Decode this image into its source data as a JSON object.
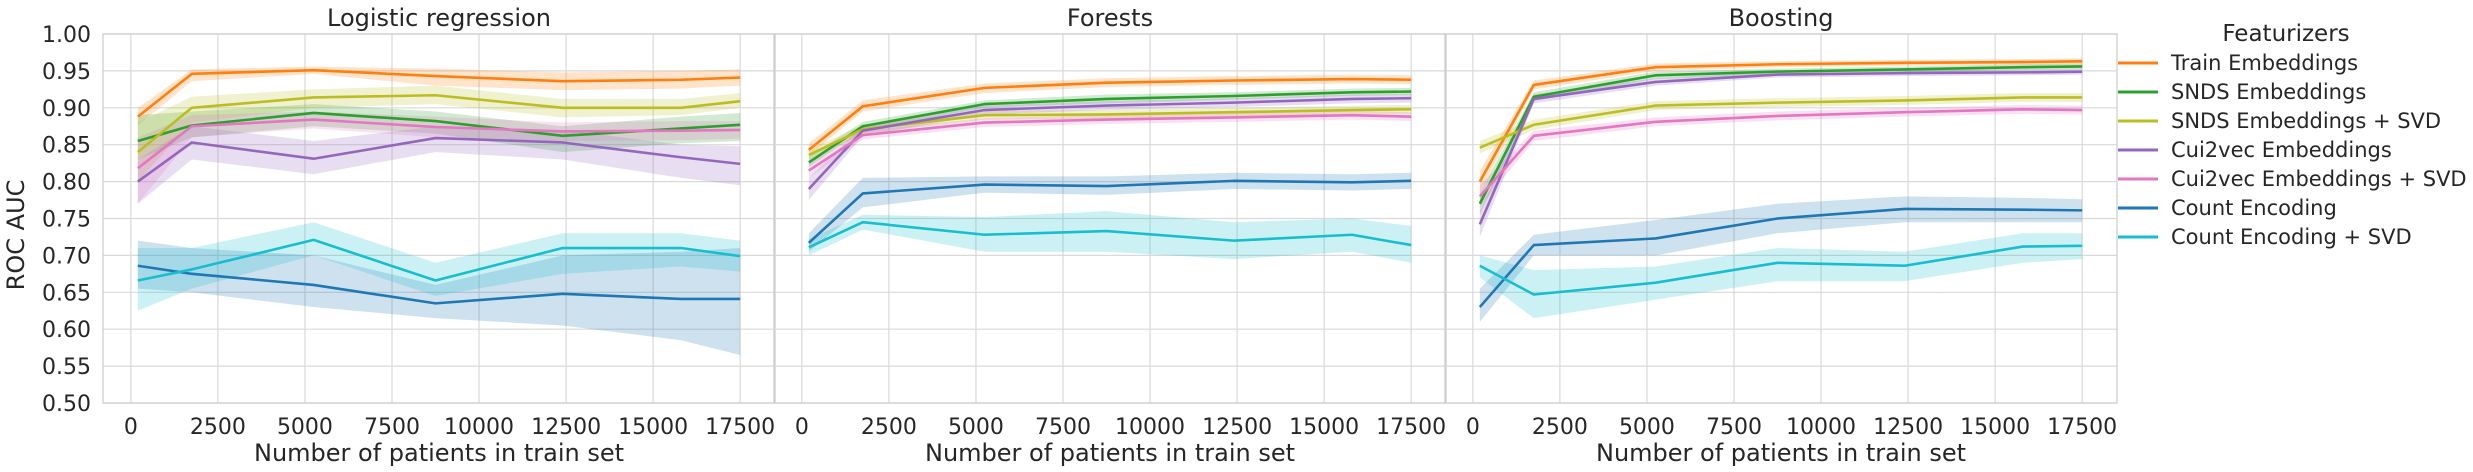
{
  "chart_data": {
    "type": "line",
    "ylabel": "ROC AUC",
    "xlabel": "Number of patients in train set",
    "ylim": [
      0.5,
      1.0
    ],
    "xlim": [
      -800,
      18500
    ],
    "yticks": [
      0.5,
      0.55,
      0.6,
      0.65,
      0.7,
      0.75,
      0.8,
      0.85,
      0.9,
      0.95,
      1.0
    ],
    "ytick_labels": [
      "0.50",
      "0.55",
      "0.60",
      "0.65",
      "0.70",
      "0.75",
      "0.80",
      "0.85",
      "0.90",
      "0.95",
      "1.00"
    ],
    "xticks": [
      0,
      2500,
      5000,
      7500,
      10000,
      12500,
      15000,
      17500
    ],
    "xtick_labels": [
      "0",
      "2500",
      "5000",
      "7500",
      "10000",
      "12500",
      "15000",
      "17500"
    ],
    "grid": true,
    "shared_y": true,
    "legend": {
      "title": "Featurizers",
      "placement": "right outside",
      "entries": [
        "Train Embeddings",
        "SNDS Embeddings",
        "SNDS Embeddings + SVD",
        "Cui2vec Embeddings",
        "Cui2vec Embeddings + SVD",
        "Count Encoding",
        "Count Encoding + SVD"
      ],
      "colors": [
        "#ff7f0e",
        "#2ca02c",
        "#bcbd22",
        "#9467bd",
        "#e377c2",
        "#1f77b4",
        "#17becf"
      ]
    },
    "panels": [
      {
        "title": "Logistic regression",
        "x": [
          200,
          1750,
          5250,
          8750,
          12400,
          15800,
          17500
        ],
        "series": [
          {
            "name": "Train Embeddings",
            "color": "#ff7f0e",
            "values": [
              0.888,
              0.946,
              0.951,
              0.943,
              0.936,
              0.938,
              0.941
            ],
            "lower": [
              0.876,
              0.936,
              0.946,
              0.93,
              0.924,
              0.926,
              0.93
            ],
            "upper": [
              0.9,
              0.952,
              0.956,
              0.953,
              0.948,
              0.95,
              0.952
            ]
          },
          {
            "name": "SNDS Embeddings",
            "color": "#2ca02c",
            "values": [
              0.855,
              0.876,
              0.893,
              0.882,
              0.862,
              0.872,
              0.877
            ],
            "lower": [
              0.83,
              0.86,
              0.875,
              0.865,
              0.84,
              0.852,
              0.855
            ],
            "upper": [
              0.89,
              0.895,
              0.905,
              0.895,
              0.875,
              0.888,
              0.893
            ]
          },
          {
            "name": "SNDS Embeddings + SVD",
            "color": "#bcbd22",
            "values": [
              0.84,
              0.9,
              0.914,
              0.917,
              0.9,
              0.9,
              0.909
            ],
            "lower": [
              0.8,
              0.88,
              0.9,
              0.905,
              0.887,
              0.89,
              0.9
            ],
            "upper": [
              0.88,
              0.915,
              0.925,
              0.93,
              0.912,
              0.912,
              0.92
            ]
          },
          {
            "name": "Cui2vec Embeddings",
            "color": "#9467bd",
            "values": [
              0.8,
              0.853,
              0.831,
              0.859,
              0.853,
              0.833,
              0.824
            ],
            "lower": [
              0.77,
              0.83,
              0.81,
              0.84,
              0.83,
              0.805,
              0.795
            ],
            "upper": [
              0.83,
              0.875,
              0.855,
              0.875,
              0.87,
              0.85,
              0.848
            ]
          },
          {
            "name": "Cui2vec Embeddings + SVD",
            "color": "#e377c2",
            "values": [
              0.818,
              0.875,
              0.884,
              0.874,
              0.868,
              0.869,
              0.87
            ],
            "lower": [
              0.77,
              0.86,
              0.872,
              0.86,
              0.855,
              0.856,
              0.858
            ],
            "upper": [
              0.86,
              0.89,
              0.895,
              0.888,
              0.88,
              0.882,
              0.882
            ]
          },
          {
            "name": "Count Encoding",
            "color": "#1f77b4",
            "values": [
              0.686,
              0.675,
              0.66,
              0.635,
              0.648,
              0.641,
              0.641
            ],
            "lower": [
              0.655,
              0.65,
              0.63,
              0.615,
              0.605,
              0.585,
              0.565
            ],
            "upper": [
              0.72,
              0.71,
              0.7,
              0.66,
              0.7,
              0.705,
              0.71
            ]
          },
          {
            "name": "Count Encoding + SVD",
            "color": "#17becf",
            "values": [
              0.666,
              0.681,
              0.721,
              0.666,
              0.71,
              0.71,
              0.699
            ],
            "lower": [
              0.625,
              0.655,
              0.7,
              0.645,
              0.675,
              0.685,
              0.678
            ],
            "upper": [
              0.71,
              0.71,
              0.745,
              0.69,
              0.73,
              0.73,
              0.72
            ]
          }
        ]
      },
      {
        "title": "Forests",
        "x": [
          200,
          1750,
          5250,
          8750,
          12400,
          15800,
          17500
        ],
        "series": [
          {
            "name": "Train Embeddings",
            "color": "#ff7f0e",
            "values": [
              0.843,
              0.902,
              0.927,
              0.934,
              0.937,
              0.939,
              0.938
            ],
            "lower": [
              0.835,
              0.895,
              0.92,
              0.928,
              0.931,
              0.933,
              0.932
            ],
            "upper": [
              0.852,
              0.91,
              0.933,
              0.94,
              0.943,
              0.945,
              0.944
            ]
          },
          {
            "name": "SNDS Embeddings",
            "color": "#2ca02c",
            "values": [
              0.826,
              0.875,
              0.905,
              0.912,
              0.916,
              0.921,
              0.922
            ],
            "lower": [
              0.82,
              0.869,
              0.9,
              0.906,
              0.911,
              0.916,
              0.917
            ],
            "upper": [
              0.834,
              0.881,
              0.91,
              0.918,
              0.921,
              0.926,
              0.927
            ]
          },
          {
            "name": "SNDS Embeddings + SVD",
            "color": "#bcbd22",
            "values": [
              0.836,
              0.871,
              0.89,
              0.891,
              0.894,
              0.897,
              0.898
            ],
            "lower": [
              0.829,
              0.865,
              0.884,
              0.885,
              0.888,
              0.891,
              0.892
            ],
            "upper": [
              0.843,
              0.877,
              0.896,
              0.897,
              0.9,
              0.903,
              0.904
            ]
          },
          {
            "name": "Cui2vec Embeddings",
            "color": "#9467bd",
            "values": [
              0.79,
              0.869,
              0.897,
              0.903,
              0.907,
              0.912,
              0.913
            ],
            "lower": [
              0.775,
              0.862,
              0.891,
              0.897,
              0.901,
              0.906,
              0.907
            ],
            "upper": [
              0.805,
              0.876,
              0.903,
              0.909,
              0.913,
              0.918,
              0.919
            ]
          },
          {
            "name": "Cui2vec Embeddings + SVD",
            "color": "#e377c2",
            "values": [
              0.815,
              0.863,
              0.88,
              0.884,
              0.887,
              0.89,
              0.888
            ],
            "lower": [
              0.805,
              0.857,
              0.874,
              0.878,
              0.881,
              0.884,
              0.882
            ],
            "upper": [
              0.825,
              0.869,
              0.886,
              0.89,
              0.893,
              0.896,
              0.894
            ]
          },
          {
            "name": "Count Encoding",
            "color": "#1f77b4",
            "values": [
              0.717,
              0.784,
              0.796,
              0.794,
              0.801,
              0.799,
              0.801
            ],
            "lower": [
              0.705,
              0.765,
              0.785,
              0.782,
              0.79,
              0.788,
              0.79
            ],
            "upper": [
              0.73,
              0.805,
              0.807,
              0.807,
              0.812,
              0.81,
              0.812
            ]
          },
          {
            "name": "Count Encoding + SVD",
            "color": "#17becf",
            "values": [
              0.711,
              0.745,
              0.728,
              0.733,
              0.72,
              0.728,
              0.714
            ],
            "lower": [
              0.7,
              0.735,
              0.705,
              0.705,
              0.695,
              0.705,
              0.69
            ],
            "upper": [
              0.722,
              0.755,
              0.752,
              0.76,
              0.745,
              0.75,
              0.74
            ]
          }
        ]
      },
      {
        "title": "Boosting",
        "x": [
          200,
          1750,
          5250,
          8750,
          12400,
          15800,
          17500
        ],
        "series": [
          {
            "name": "Train Embeddings",
            "color": "#ff7f0e",
            "values": [
              0.8,
              0.931,
              0.955,
              0.959,
              0.961,
              0.962,
              0.963
            ],
            "lower": [
              0.785,
              0.925,
              0.95,
              0.955,
              0.957,
              0.958,
              0.959
            ],
            "upper": [
              0.815,
              0.937,
              0.96,
              0.963,
              0.965,
              0.966,
              0.967
            ]
          },
          {
            "name": "SNDS Embeddings",
            "color": "#2ca02c",
            "values": [
              0.77,
              0.915,
              0.944,
              0.949,
              0.952,
              0.955,
              0.956
            ],
            "lower": [
              0.755,
              0.909,
              0.939,
              0.945,
              0.948,
              0.951,
              0.952
            ],
            "upper": [
              0.785,
              0.921,
              0.949,
              0.953,
              0.956,
              0.959,
              0.96
            ]
          },
          {
            "name": "SNDS Embeddings + SVD",
            "color": "#bcbd22",
            "values": [
              0.846,
              0.877,
              0.903,
              0.907,
              0.91,
              0.914,
              0.914
            ],
            "lower": [
              0.838,
              0.87,
              0.897,
              0.901,
              0.904,
              0.908,
              0.908
            ],
            "upper": [
              0.855,
              0.884,
              0.909,
              0.913,
              0.916,
              0.92,
              0.92
            ]
          },
          {
            "name": "Cui2vec Embeddings",
            "color": "#9467bd",
            "values": [
              0.742,
              0.912,
              0.935,
              0.945,
              0.947,
              0.948,
              0.949
            ],
            "lower": [
              0.725,
              0.906,
              0.93,
              0.941,
              0.943,
              0.944,
              0.945
            ],
            "upper": [
              0.76,
              0.918,
              0.94,
              0.949,
              0.951,
              0.952,
              0.953
            ]
          },
          {
            "name": "Cui2vec Embeddings + SVD",
            "color": "#e377c2",
            "values": [
              0.78,
              0.862,
              0.881,
              0.889,
              0.894,
              0.898,
              0.897
            ],
            "lower": [
              0.765,
              0.855,
              0.875,
              0.883,
              0.888,
              0.892,
              0.891
            ],
            "upper": [
              0.795,
              0.869,
              0.887,
              0.895,
              0.9,
              0.904,
              0.903
            ]
          },
          {
            "name": "Count Encoding",
            "color": "#1f77b4",
            "values": [
              0.63,
              0.714,
              0.723,
              0.75,
              0.763,
              0.762,
              0.761
            ],
            "lower": [
              0.61,
              0.7,
              0.7,
              0.73,
              0.745,
              0.745,
              0.745
            ],
            "upper": [
              0.655,
              0.728,
              0.748,
              0.77,
              0.78,
              0.778,
              0.776
            ]
          },
          {
            "name": "Count Encoding + SVD",
            "color": "#17becf",
            "values": [
              0.686,
              0.647,
              0.663,
              0.69,
              0.686,
              0.712,
              0.713
            ],
            "lower": [
              0.67,
              0.615,
              0.64,
              0.665,
              0.665,
              0.69,
              0.695
            ],
            "upper": [
              0.7,
              0.68,
              0.685,
              0.71,
              0.705,
              0.73,
              0.73
            ]
          }
        ]
      }
    ]
  }
}
